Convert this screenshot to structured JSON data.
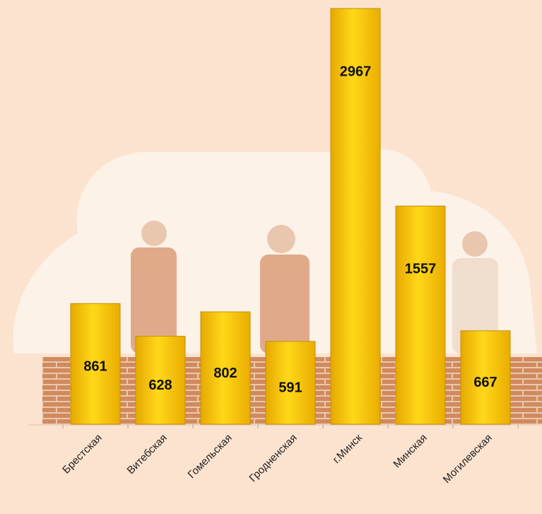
{
  "chart_data": {
    "type": "bar",
    "categories": [
      "Брестская",
      "Витебская",
      "Гомельская",
      "Гродненская",
      "г.Минск",
      "Минская",
      "Могилевская"
    ],
    "values": [
      861,
      628,
      802,
      591,
      2967,
      1557,
      667
    ],
    "color": "#ffc800"
  }
}
